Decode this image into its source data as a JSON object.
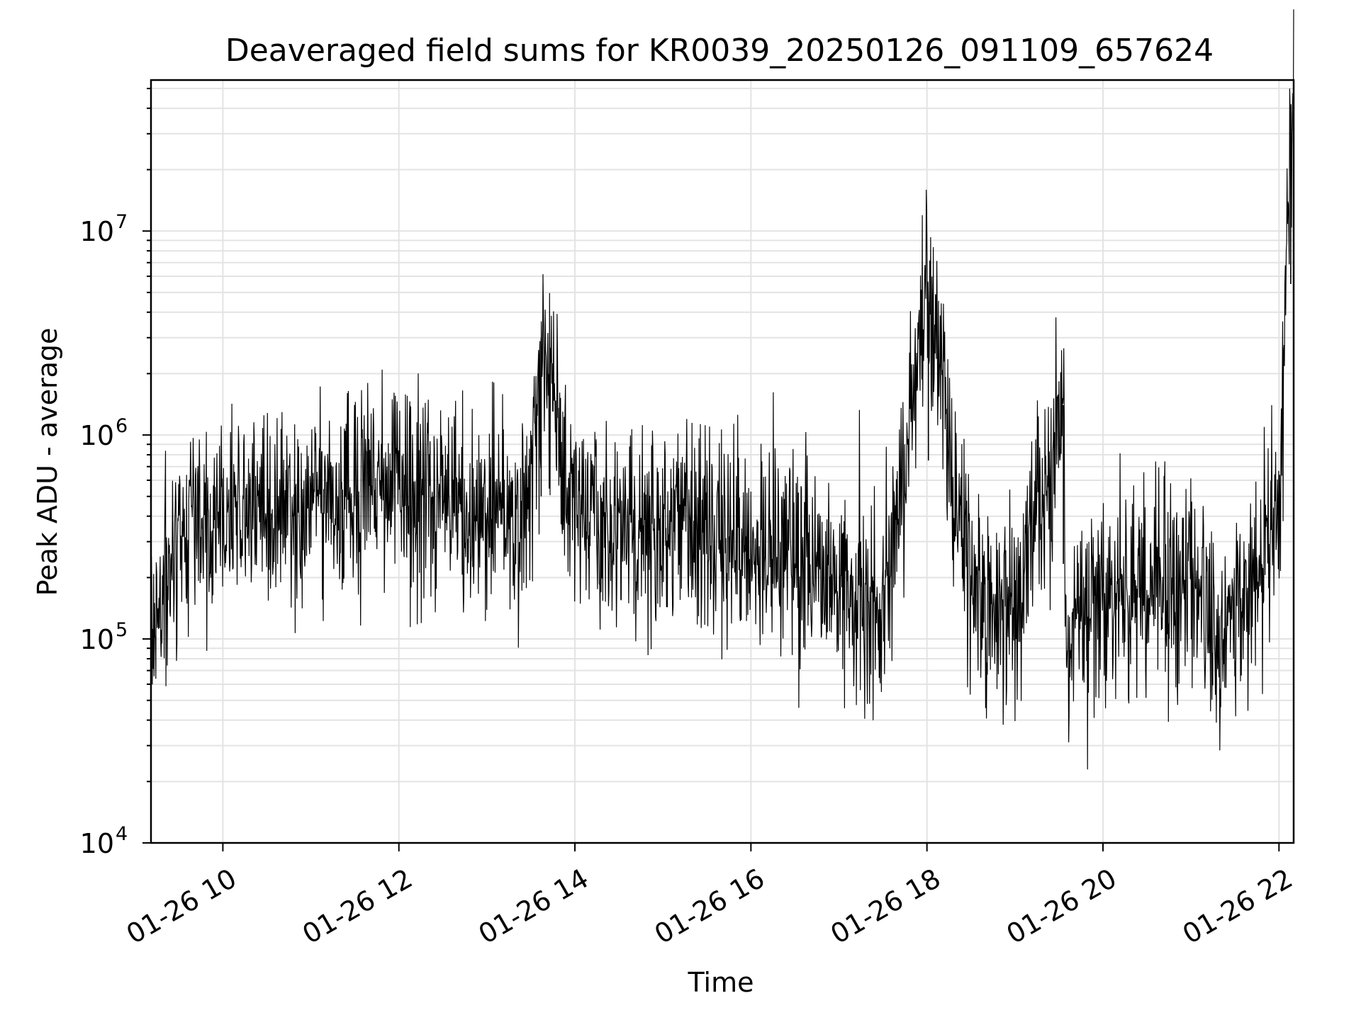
{
  "chart_data": {
    "type": "line",
    "title": "Deaveraged field sums for KR0039_20250126_091109_657624",
    "xlabel": "Time",
    "ylabel": "Peak ADU - average",
    "y_scale": "log",
    "ylim": [
      10000,
      55000000
    ],
    "xlim": [
      "01-26 09:11",
      "01-26 22:10"
    ],
    "x_ticks": [
      "01-26 10",
      "01-26 12",
      "01-26 14",
      "01-26 16",
      "01-26 18",
      "01-26 20",
      "01-26 22"
    ],
    "y_ticks": [
      {
        "base": "10",
        "exp": "4",
        "value": 10000
      },
      {
        "base": "10",
        "exp": "5",
        "value": 100000
      },
      {
        "base": "10",
        "exp": "6",
        "value": 1000000
      },
      {
        "base": "10",
        "exp": "7",
        "value": 10000000
      }
    ],
    "grid": true,
    "line_color": "#000000",
    "series": [
      {
        "x": [
          "01-26 09:15",
          "01-26 09:40",
          "01-26 10:00",
          "01-26 10:20",
          "01-26 10:45",
          "01-26 11:15",
          "01-26 11:30",
          "01-26 12:00",
          "01-26 12:30",
          "01-26 13:00",
          "01-26 13:30",
          "01-26 13:37",
          "01-26 14:00",
          "01-26 14:30",
          "01-26 15:00",
          "01-26 15:30",
          "01-26 16:00",
          "01-26 16:40",
          "01-26 17:00",
          "01-26 17:30",
          "01-26 18:01",
          "01-26 18:30",
          "01-26 19:00",
          "01-26 19:33",
          "01-26 19:35",
          "01-26 20:00",
          "01-26 20:30",
          "01-26 21:00",
          "01-26 21:20",
          "01-26 21:40",
          "01-26 22:00",
          "01-26 22:08"
        ],
        "y": [
          150000,
          400000,
          420000,
          450000,
          430000,
          470000,
          600000,
          520000,
          480000,
          420000,
          400000,
          3000000,
          380000,
          380000,
          360000,
          370000,
          280000,
          250000,
          150000,
          150000,
          4500000,
          140000,
          130000,
          1400000,
          120000,
          140000,
          180000,
          200000,
          100000,
          180000,
          400000,
          33000000
        ]
      }
    ]
  }
}
